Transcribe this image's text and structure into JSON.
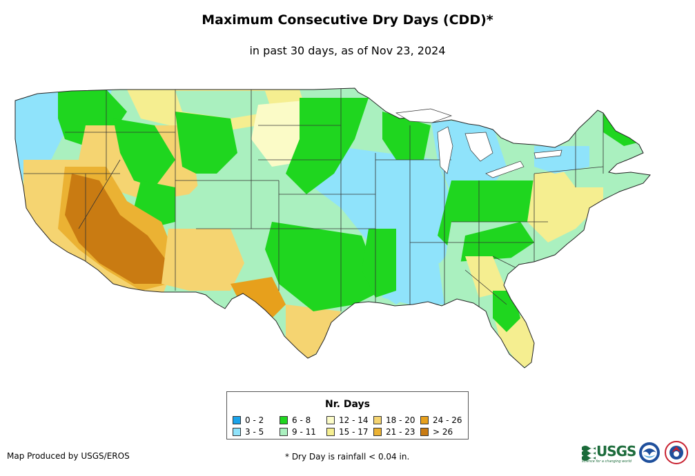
{
  "header": {
    "title": "Maximum Consecutive Dry Days (CDD)*",
    "subtitle": "in past 30 days, as of Nov 23, 2024"
  },
  "legend": {
    "title": "Nr. Days",
    "classes": [
      {
        "label": "0 - 2",
        "color": "#1aa3ea"
      },
      {
        "label": "3 - 5",
        "color": "#8fe3fb"
      },
      {
        "label": "6 - 8",
        "color": "#1fd61f"
      },
      {
        "label": "9 - 11",
        "color": "#aaf0bf"
      },
      {
        "label": "12 - 14",
        "color": "#fbfbc7"
      },
      {
        "label": "15 - 17",
        "color": "#f5ee90"
      },
      {
        "label": "18 - 20",
        "color": "#f5d471"
      },
      {
        "label": "21 - 23",
        "color": "#ebb233"
      },
      {
        "label": "24 - 26",
        "color": "#e7a01c"
      },
      {
        "label": "> 26",
        "color": "#c97b12"
      }
    ]
  },
  "footer": {
    "credit": "Map Produced by USGS/EROS",
    "footnote": "* Dry Day is rainfall < 0.04 in."
  },
  "logos": {
    "usgs": "USGS",
    "usgs_tagline": "science for a changing world"
  },
  "icons": {
    "usgs_logo": "usgs-logo-icon",
    "noaa_logo": "noaa-logo-icon",
    "nws_logo": "nws-logo-icon"
  }
}
